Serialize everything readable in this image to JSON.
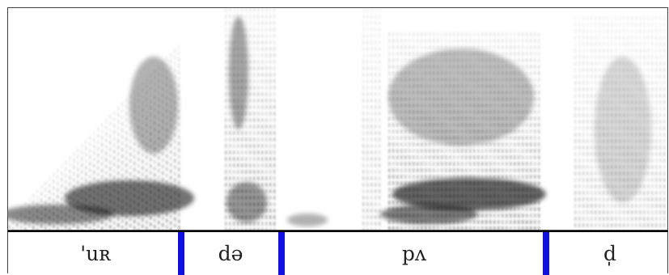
{
  "colors": {
    "boundary": "#1010e0",
    "ink": "#000000",
    "frame": "#444444"
  },
  "segments": [
    {
      "label": "'uʀ",
      "start": 0.0,
      "end": 0.256
    },
    {
      "label": "də",
      "start": 0.256,
      "end": 0.41
    },
    {
      "label": "pʌ",
      "start": 0.41,
      "end": 0.813
    },
    {
      "label": "d̩",
      "start": 0.813,
      "end": 1.0
    }
  ],
  "boundaries": [
    0.256,
    0.41,
    0.813
  ]
}
